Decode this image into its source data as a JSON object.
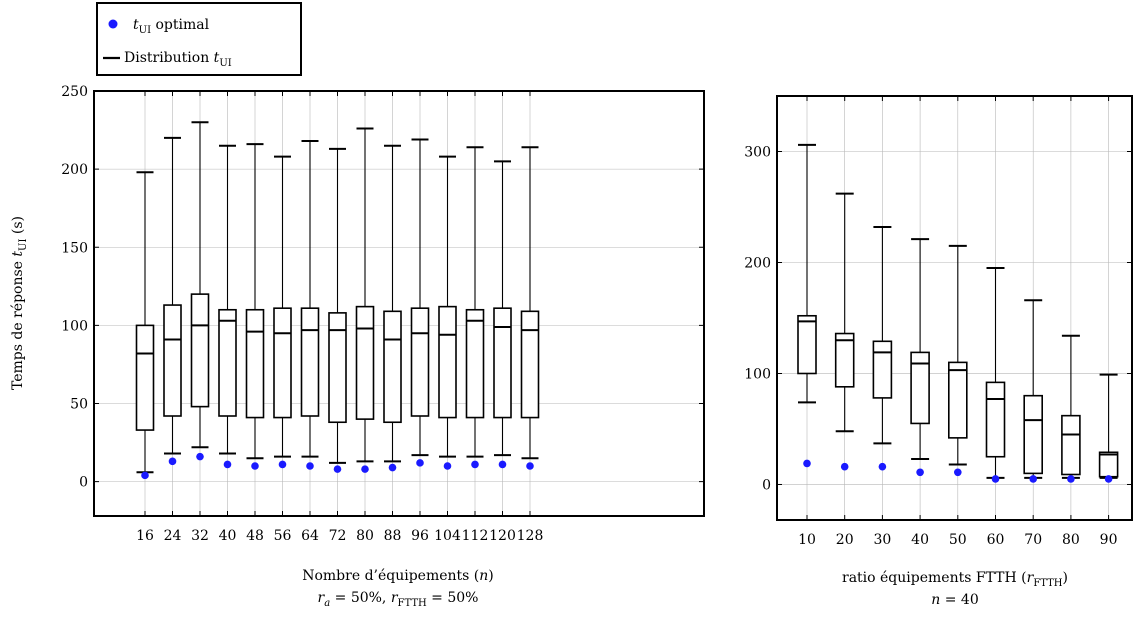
{
  "legend": {
    "optimal_label": "t",
    "optimal_sub": "UI",
    "optimal_suffix": " optimal",
    "distribution_prefix": "Distribution ",
    "distribution_var": "t",
    "distribution_sub": "UI",
    "optimal_color": "#1a1aff",
    "box_color": "#000000"
  },
  "chart_data": [
    {
      "type": "box",
      "ylabel_prefix": "Temps de réponse ",
      "ylabel_var": "t",
      "ylabel_sub": "UI",
      "ylabel_suffix": " (s)",
      "xlabel": "Nombre d’équipements (n)",
      "caption": "r_a = 50%, r_FTTH = 50%",
      "ylim": [
        -22,
        250
      ],
      "yticks": [
        0,
        50,
        100,
        150,
        200,
        250
      ],
      "grid": true,
      "categories": [
        "16",
        "24",
        "32",
        "40",
        "48",
        "56",
        "64",
        "72",
        "80",
        "88",
        "96",
        "104",
        "112",
        "120",
        "128"
      ],
      "whisker_low": [
        6,
        18,
        22,
        18,
        15,
        16,
        16,
        12,
        13,
        13,
        17,
        16,
        16,
        17,
        15
      ],
      "q1": [
        33,
        42,
        48,
        42,
        41,
        41,
        42,
        38,
        40,
        38,
        42,
        41,
        41,
        41,
        41
      ],
      "median": [
        82,
        91,
        100,
        103,
        96,
        95,
        97,
        97,
        98,
        91,
        95,
        94,
        103,
        99,
        97
      ],
      "q3": [
        100,
        113,
        120,
        110,
        110,
        111,
        111,
        108,
        112,
        109,
        111,
        112,
        110,
        111,
        109
      ],
      "whisker_high": [
        198,
        220,
        230,
        215,
        216,
        208,
        218,
        213,
        226,
        215,
        219,
        208,
        214,
        205,
        214
      ],
      "optimal": [
        4,
        13,
        16,
        11,
        10,
        11,
        10,
        8,
        8,
        9,
        12,
        10,
        11,
        11,
        10
      ]
    },
    {
      "type": "box",
      "xlabel": "ratio équipements FTTH (r_FTTH)",
      "caption": "n = 40",
      "ylim": [
        -32,
        350
      ],
      "yticks": [
        0,
        100,
        200,
        300
      ],
      "grid": true,
      "categories": [
        "10",
        "20",
        "30",
        "40",
        "50",
        "60",
        "70",
        "80",
        "90"
      ],
      "whisker_low": [
        74,
        48,
        37,
        23,
        18,
        6,
        6,
        6,
        6
      ],
      "q1": [
        100,
        88,
        78,
        55,
        42,
        25,
        10,
        9,
        7
      ],
      "median": [
        147,
        130,
        119,
        109,
        103,
        77,
        58,
        45,
        27
      ],
      "q3": [
        152,
        136,
        129,
        119,
        110,
        92,
        80,
        62,
        29
      ],
      "whisker_high": [
        306,
        262,
        232,
        221,
        215,
        195,
        166,
        134,
        99
      ],
      "optimal": [
        19,
        16,
        16,
        11,
        11,
        5,
        5,
        5,
        5
      ]
    }
  ]
}
